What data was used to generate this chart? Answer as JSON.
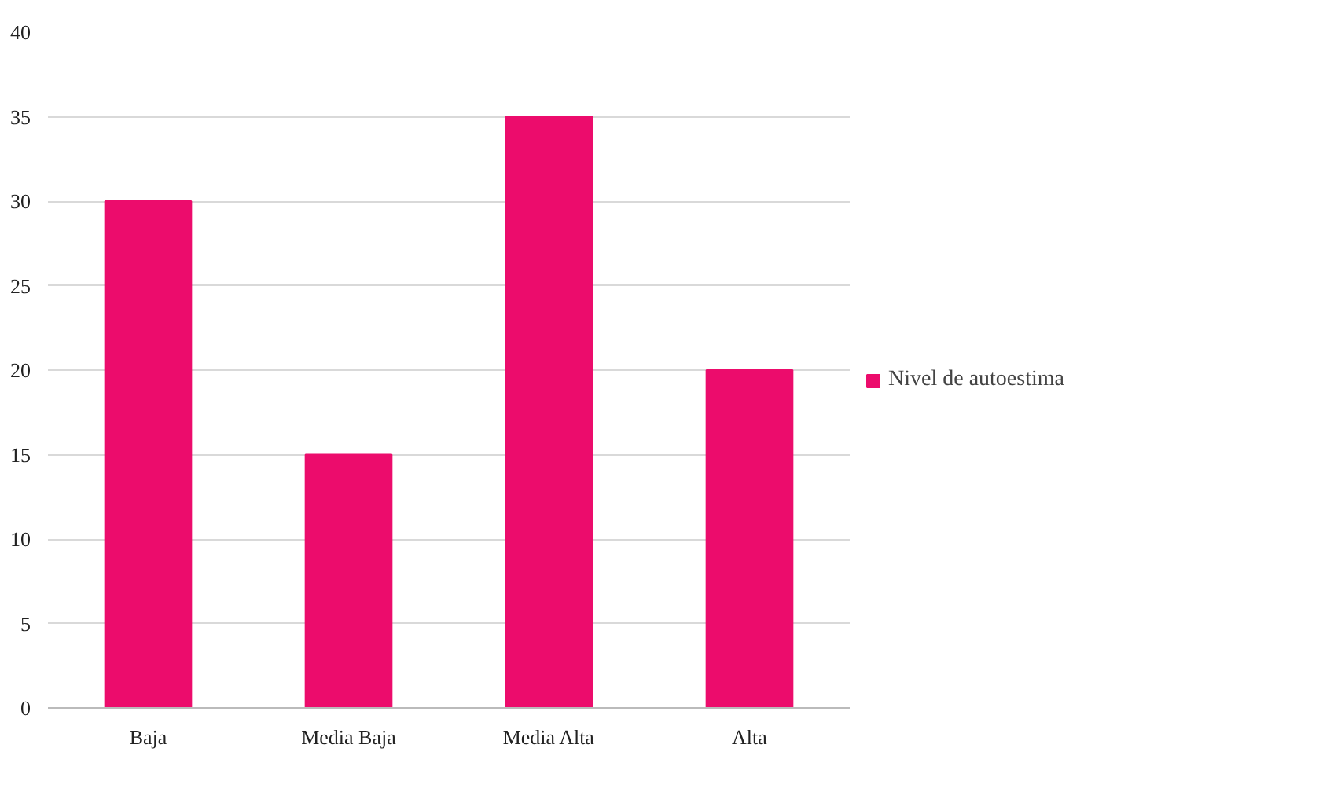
{
  "chart_data": {
    "type": "bar",
    "categories": [
      "Baja",
      "Media Baja",
      "Media Alta",
      "Alta"
    ],
    "series": [
      {
        "name": "Nivel de autoestima",
        "color": "#ec0c6c",
        "values": [
          30,
          15,
          35,
          20
        ]
      }
    ],
    "ylim": [
      0,
      40
    ],
    "yticks": [
      0,
      5,
      10,
      15,
      20,
      25,
      30,
      35,
      40
    ],
    "grid": "y",
    "legend": "right"
  }
}
